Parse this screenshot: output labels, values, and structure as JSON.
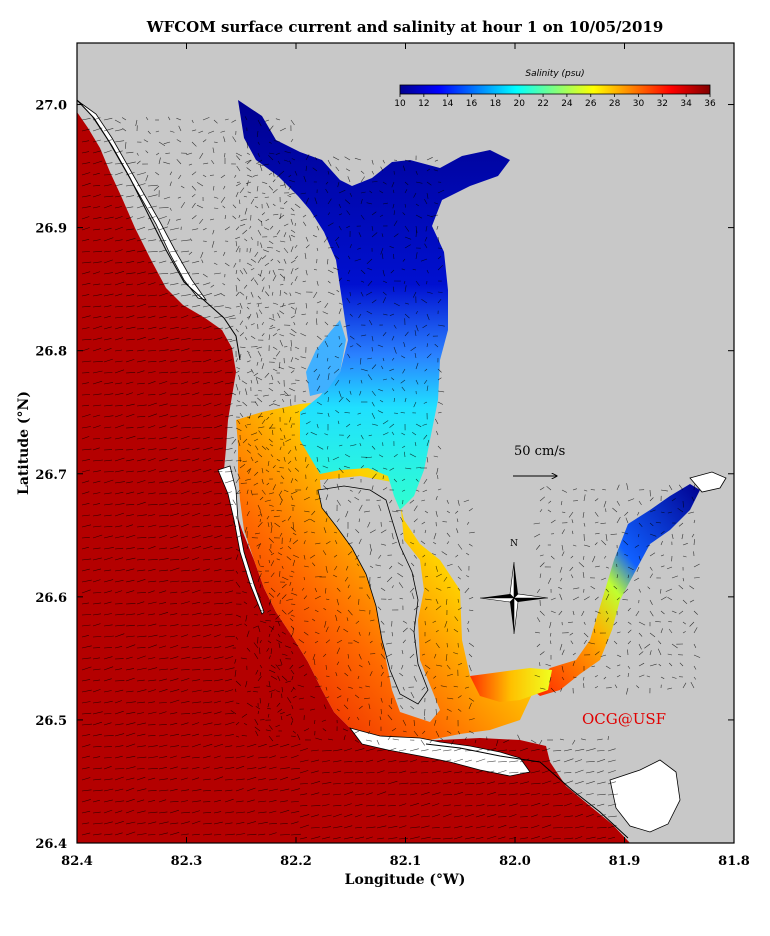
{
  "title": "WFCOM surface current and salinity at hour 1 on 10/05/2019",
  "x_axis": {
    "label": "Longitude (°W)",
    "ticks": [
      "82.4",
      "82.3",
      "82.2",
      "82.1",
      "82.0",
      "81.9",
      "81.8"
    ]
  },
  "y_axis": {
    "label": "Latitude (°N)",
    "ticks": [
      "27.0",
      "26.9",
      "26.8",
      "26.7",
      "26.6",
      "26.5",
      "26.4"
    ]
  },
  "colorbar": {
    "title": "Salinity (psu)",
    "ticks": [
      "10",
      "12",
      "14",
      "16",
      "18",
      "20",
      "22",
      "24",
      "26",
      "28",
      "30",
      "32",
      "34",
      "36"
    ],
    "range": [
      10,
      36
    ],
    "colormap": "jet"
  },
  "scale_vector": {
    "label": "50 cm/s"
  },
  "north_arrow": {
    "label": "N"
  },
  "credit": "OCG@USF",
  "colors": {
    "land": "#c8c8c8",
    "gulf_water": "#b40000",
    "coastline": "#000000",
    "credit": "#e00000"
  },
  "map_extent": {
    "lon_min_W": 82.4,
    "lon_max_W": 81.8,
    "lat_min_N": 26.4,
    "lat_max_N": 27.05
  }
}
